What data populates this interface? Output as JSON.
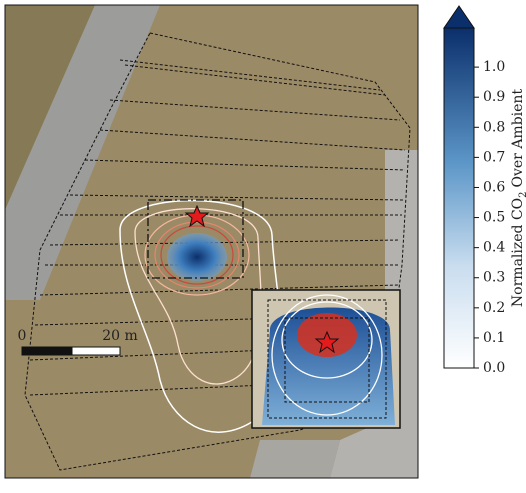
{
  "map": {
    "scale_bar": {
      "start_label": "0",
      "end_label": "20 m"
    }
  },
  "colorbar": {
    "label": {
      "main": "Normalized CO",
      "subscript": "2",
      "rest": "Over Ambient"
    },
    "lim": [
      0,
      1.13
    ],
    "ticks": [
      {
        "value": 0,
        "label": "0.0"
      },
      0.1,
      0.2,
      0.3,
      0.4,
      0.5,
      0.6,
      0.7,
      0.8,
      0.9,
      {
        "value": 1,
        "label": "1.0"
      }
    ]
  }
}
